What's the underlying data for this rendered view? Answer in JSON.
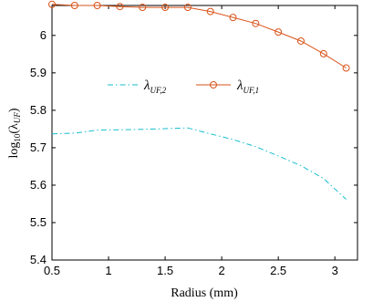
{
  "chart_data": {
    "type": "line",
    "xlabel": "Radius (mm)",
    "ylabel_base": "log",
    "ylabel_sub": "10",
    "ylabel_rest": "(λ",
    "ylabel_sub2": "UF",
    "ylabel_end": ")",
    "xlim": [
      0.5,
      3.2
    ],
    "ylim": [
      5.4,
      6.08
    ],
    "xticks": [
      "0.5",
      "1",
      "1.5",
      "2",
      "2.5",
      "3"
    ],
    "xtick_values": [
      0.5,
      1,
      1.5,
      2,
      2.5,
      3
    ],
    "yticks": [
      "5.4",
      "5.5",
      "5.6",
      "5.7",
      "5.8",
      "5.9",
      "6"
    ],
    "ytick_values": [
      5.4,
      5.5,
      5.6,
      5.7,
      5.8,
      5.9,
      6.0
    ],
    "grid": false,
    "legend_placement": "center",
    "series": [
      {
        "name_main": "λ",
        "name_sub": "UF,2",
        "color": "#17becf",
        "style": "dash-dot",
        "marker": "none",
        "x": [
          0.5,
          0.7,
          0.9,
          1.1,
          1.3,
          1.5,
          1.7,
          1.9,
          2.1,
          2.3,
          2.5,
          2.7,
          2.9,
          3.1
        ],
        "y": [
          5.737,
          5.739,
          5.747,
          5.748,
          5.749,
          5.751,
          5.753,
          5.737,
          5.722,
          5.703,
          5.678,
          5.652,
          5.618,
          5.562
        ]
      },
      {
        "name_main": "λ",
        "name_sub": "UF,1",
        "color": "#d95319",
        "style": "solid",
        "marker": "circle",
        "x": [
          0.5,
          0.7,
          0.9,
          1.1,
          1.3,
          1.5,
          1.7,
          1.9,
          2.1,
          2.3,
          2.5,
          2.7,
          2.9,
          3.1
        ],
        "y": [
          6.083,
          6.08,
          6.08,
          6.077,
          6.075,
          6.075,
          6.075,
          6.064,
          6.048,
          6.032,
          6.009,
          5.985,
          5.951,
          5.913
        ]
      }
    ]
  }
}
